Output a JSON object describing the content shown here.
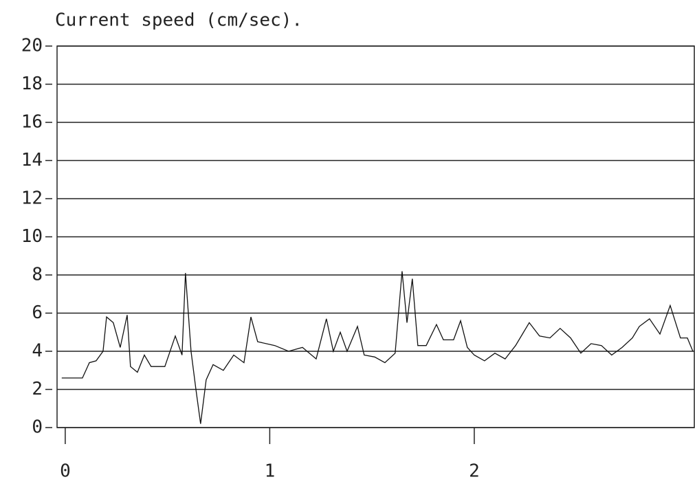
{
  "chart_data": {
    "type": "line",
    "title": "Current speed (cm/sec).",
    "x": [
      -0.017,
      0.084,
      0.118,
      0.151,
      0.185,
      0.202,
      0.235,
      0.269,
      0.303,
      0.319,
      0.353,
      0.387,
      0.42,
      0.487,
      0.538,
      0.571,
      0.588,
      0.615,
      0.639,
      0.662,
      0.689,
      0.723,
      0.773,
      0.824,
      0.874,
      0.908,
      0.941,
      1.025,
      1.092,
      1.16,
      1.227,
      1.277,
      1.311,
      1.345,
      1.378,
      1.429,
      1.462,
      1.513,
      1.563,
      1.613,
      1.647,
      1.671,
      1.697,
      1.724,
      1.765,
      1.815,
      1.849,
      1.899,
      1.933,
      1.966,
      2.0,
      2.05,
      2.101,
      2.151,
      2.202,
      2.269,
      2.319,
      2.37,
      2.42,
      2.471,
      2.521,
      2.571,
      2.622,
      2.672,
      2.723,
      2.773,
      2.807,
      2.857,
      2.908,
      2.958,
      3.008,
      3.042,
      3.069
    ],
    "series": [
      {
        "name": "Current speed",
        "color": "#111111",
        "values": [
          2.6,
          2.6,
          3.4,
          3.5,
          4.0,
          5.8,
          5.5,
          4.2,
          5.9,
          3.2,
          2.9,
          3.8,
          3.2,
          3.2,
          4.8,
          3.8,
          8.1,
          4.0,
          2.0,
          0.2,
          2.5,
          3.3,
          3.0,
          3.8,
          3.4,
          5.8,
          4.5,
          4.3,
          4.0,
          4.2,
          3.6,
          5.7,
          4.0,
          5.0,
          4.0,
          5.3,
          3.8,
          3.7,
          3.4,
          3.9,
          8.2,
          5.5,
          7.8,
          4.3,
          4.3,
          5.4,
          4.6,
          4.6,
          5.6,
          4.2,
          3.8,
          3.5,
          3.9,
          3.6,
          4.3,
          5.5,
          4.8,
          4.7,
          5.2,
          4.7,
          3.9,
          4.4,
          4.3,
          3.8,
          4.2,
          4.7,
          5.3,
          5.7,
          4.9,
          6.4,
          4.7,
          4.7,
          4.0
        ]
      }
    ],
    "xlim": [
      -0.04,
      3.076
    ],
    "xticks": [
      0,
      1,
      2
    ],
    "ylim": [
      0,
      20
    ],
    "yticks": [
      0,
      2,
      4,
      6,
      8,
      10,
      12,
      14,
      16,
      18,
      20
    ],
    "grid": true
  }
}
